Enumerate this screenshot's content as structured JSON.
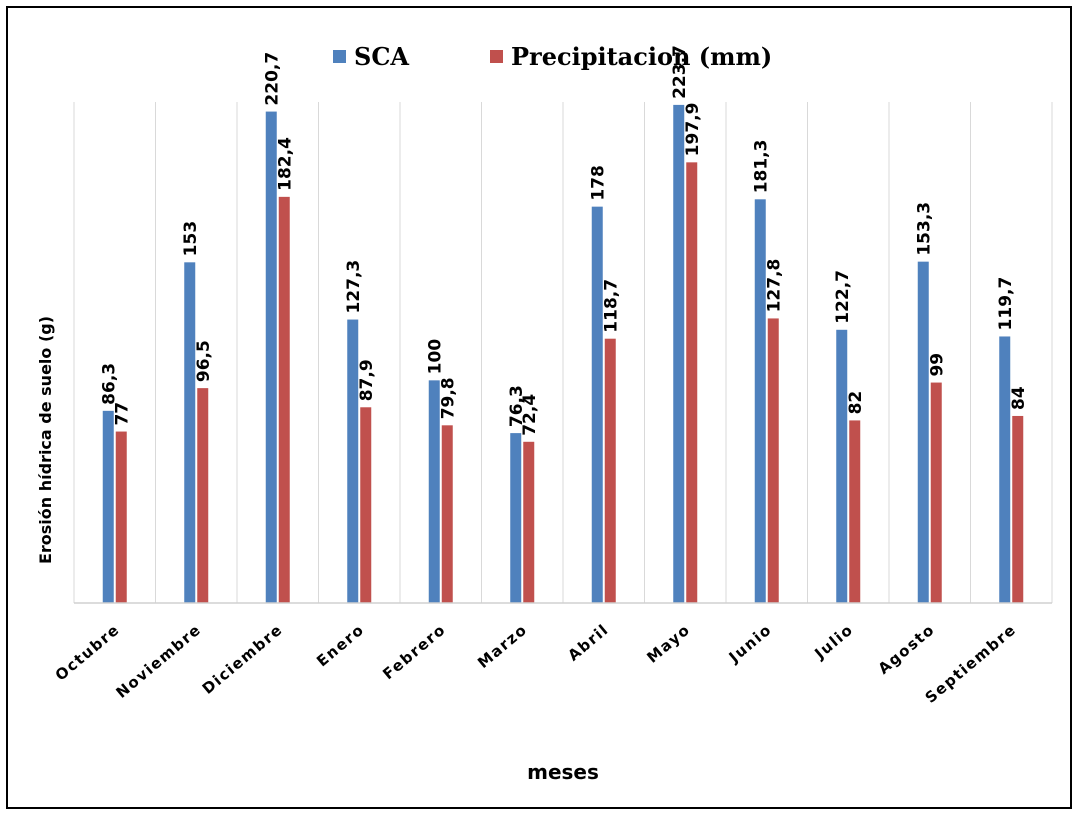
{
  "chart_data": {
    "type": "bar",
    "categories": [
      "Octubre",
      "Noviembre",
      "Diciembre",
      "Enero",
      "Febrero",
      "Marzo",
      "Abril",
      "Mayo",
      "Junio",
      "Julio",
      "Agosto",
      "Septiembre"
    ],
    "series": [
      {
        "name": "SCA",
        "color": "#4f81bd",
        "values": [
          86.3,
          153,
          220.7,
          127.3,
          100,
          76.3,
          178,
          223.7,
          181.3,
          122.7,
          153.3,
          119.7
        ],
        "labels": [
          "86,3",
          "153",
          "220,7",
          "127,3",
          "100",
          "76,3",
          "178",
          "223,7",
          "181,3",
          "122,7",
          "153,3",
          "119,7"
        ]
      },
      {
        "name": "Precipitacion (mm)",
        "color": "#c0504d",
        "values": [
          77,
          96.5,
          182.4,
          87.9,
          79.8,
          72.4,
          118.7,
          197.9,
          127.8,
          82,
          99,
          84
        ],
        "labels": [
          "77",
          "96,5",
          "182,4",
          "87,9",
          "79,8",
          "72,4",
          "118,7",
          "197,9",
          "127,8",
          "82",
          "99",
          "84"
        ]
      }
    ],
    "xlabel": "meses",
    "ylabel": "Erosión hídrica de suelo (g)",
    "ylim": [
      0,
      225
    ],
    "grid": "vertical",
    "legend": "top-center"
  }
}
